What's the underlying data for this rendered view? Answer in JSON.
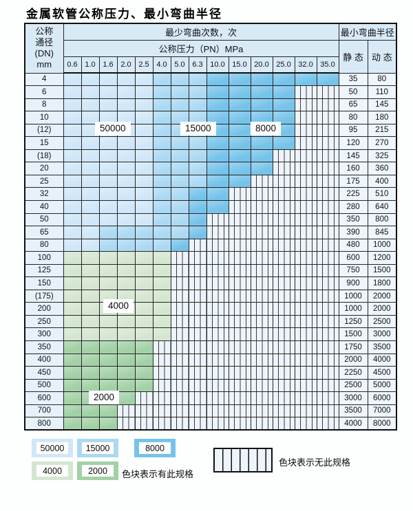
{
  "title": "金属软管公称压力、最小弯曲半径",
  "table": {
    "dn_header_lines": [
      "公称",
      "通径",
      "(DN)",
      "mm"
    ],
    "bend_times_header": "最少弯曲次数，次",
    "pressure_header": "公称压力（PN）MPa",
    "radius_header": "最小弯曲半径",
    "static_header": "静 态",
    "dynamic_header": "动 态",
    "pressure_columns": [
      "0.6",
      "1.0",
      "1.6",
      "2.0",
      "2.5",
      "4.0",
      "5.0",
      "6.3",
      "10.0",
      "15.0",
      "20.0",
      "25.0",
      "32.0",
      "35.0"
    ],
    "zone_codes": {
      "L": "50000",
      "M": "15000",
      "D": "8000",
      "g": "4000",
      "G": "2000",
      "N": "no-spec"
    },
    "rows": [
      {
        "dn": "4",
        "zones": "LLLLLMMMDDDDDD",
        "static": "35",
        "dynamic": "80"
      },
      {
        "dn": "6",
        "zones": "LLLLLMMMDDDDNN",
        "static": "50",
        "dynamic": "110"
      },
      {
        "dn": "8",
        "zones": "LLLLLMMMDDDDNN",
        "static": "65",
        "dynamic": "145"
      },
      {
        "dn": "10",
        "zones": "LLLLLMMMDDDDNN",
        "static": "80",
        "dynamic": "180"
      },
      {
        "dn": "(12)",
        "zones": "LLLLLMMMDDDDNN",
        "static": "95",
        "dynamic": "215"
      },
      {
        "dn": "15",
        "zones": "LLLLLMMMDDDDNN",
        "static": "120",
        "dynamic": "270"
      },
      {
        "dn": "(18)",
        "zones": "LLLLLMMMDDDNNN",
        "static": "145",
        "dynamic": "325"
      },
      {
        "dn": "20",
        "zones": "LLLLLMMMDDDNNN",
        "static": "160",
        "dynamic": "360"
      },
      {
        "dn": "25",
        "zones": "LLLLLMMMDDNNNN",
        "static": "175",
        "dynamic": "400"
      },
      {
        "dn": "32",
        "zones": "LLLLLMMDDNNNNN",
        "static": "225",
        "dynamic": "510"
      },
      {
        "dn": "40",
        "zones": "LLLLLMMDDNNNNN",
        "static": "280",
        "dynamic": "640"
      },
      {
        "dn": "50",
        "zones": "LLLLLMMDNNNNNN",
        "static": "350",
        "dynamic": "800"
      },
      {
        "dn": "65",
        "zones": "LLMMMMMDNNNNNN",
        "static": "390",
        "dynamic": "845"
      },
      {
        "dn": "80",
        "zones": "LLMMMMDNNNNNNN",
        "static": "480",
        "dynamic": "1000"
      },
      {
        "dn": "100",
        "zones": "ggggggNNNNNNNN",
        "static": "600",
        "dynamic": "1200"
      },
      {
        "dn": "125",
        "zones": "ggggggNNNNNNNN",
        "static": "750",
        "dynamic": "1500"
      },
      {
        "dn": "150",
        "zones": "ggggggNNNNNNNN",
        "static": "900",
        "dynamic": "1800"
      },
      {
        "dn": "(175)",
        "zones": "ggggggNNNNNNNN",
        "static": "1000",
        "dynamic": "2000"
      },
      {
        "dn": "200",
        "zones": "ggggggNNNNNNNN",
        "static": "1000",
        "dynamic": "2000"
      },
      {
        "dn": "250",
        "zones": "ggggggNNNNNNNN",
        "static": "1250",
        "dynamic": "2500"
      },
      {
        "dn": "300",
        "zones": "ggggggNNNNNNNN",
        "static": "1500",
        "dynamic": "3000"
      },
      {
        "dn": "350",
        "zones": "GGGGGNNNNNNNNN",
        "static": "1750",
        "dynamic": "3500"
      },
      {
        "dn": "400",
        "zones": "GGGGGNNNNNNNNN",
        "static": "2000",
        "dynamic": "4000"
      },
      {
        "dn": "450",
        "zones": "GGGGGNNNNNNNNN",
        "static": "2250",
        "dynamic": "4500"
      },
      {
        "dn": "500",
        "zones": "GGGGGNNNNNNNNN",
        "static": "2500",
        "dynamic": "5000"
      },
      {
        "dn": "600",
        "zones": "GGGGNNNNNNNNNN",
        "static": "3000",
        "dynamic": "6000"
      },
      {
        "dn": "700",
        "zones": "GGGNNNNNNNNNNN",
        "static": "3500",
        "dynamic": "7000"
      },
      {
        "dn": "800",
        "zones": "GGGNNNNNNNNNNN",
        "static": "4000",
        "dynamic": "8000"
      }
    ]
  },
  "legend": {
    "swatches": [
      {
        "value": "50000",
        "color": "#cfe7f8"
      },
      {
        "value": "15000",
        "color": "#abd9f3"
      },
      {
        "value": "8000",
        "color": "#76c3ea"
      },
      {
        "value": "4000",
        "color": "#d4e6d0"
      },
      {
        "value": "2000",
        "color": "#a2d1a6"
      }
    ],
    "has_spec_label": "色块表示有此规格",
    "no_spec_label": "色块表示无此规格"
  },
  "colors": {
    "c50000": "#cfe7f8",
    "c15000": "#abd9f3",
    "c8000": "#76c3ea",
    "c4000": "#d4e6d0",
    "c2000": "#a2d1a6",
    "nospec": "#edf4fb",
    "headerbg": "#d9eaf7",
    "labelbg": "#e6f1fa",
    "valuebg": "#eef5fc"
  }
}
